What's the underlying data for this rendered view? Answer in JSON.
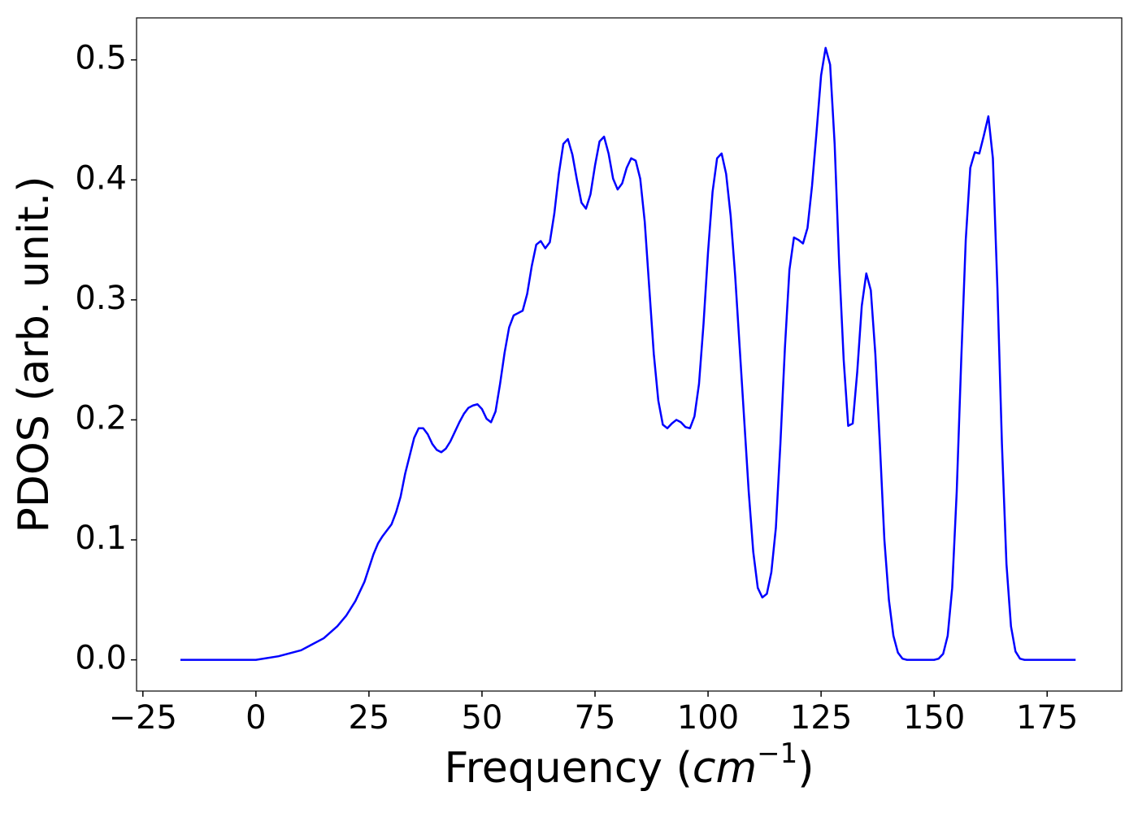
{
  "chart_data": {
    "type": "line",
    "y_label": "PDOS (arb. unit.)",
    "x_label": [
      "Frequency (",
      "cm",
      "−1",
      ")"
    ],
    "xlim": [
      -26.4,
      191.5
    ],
    "ylim": [
      -0.026,
      0.535
    ],
    "xticks": [
      {
        "value": -25,
        "label": "−25"
      },
      0,
      25,
      50,
      75,
      100,
      125,
      150,
      175
    ],
    "yticks": [
      {
        "value": 0,
        "label": "0.0"
      },
      0.1,
      0.2,
      0.3,
      0.4,
      0.5
    ],
    "x": [
      -16.7,
      -10,
      0,
      5,
      10,
      15,
      18,
      20,
      22,
      24,
      26,
      27,
      28,
      30,
      31,
      32,
      33,
      34,
      35,
      36,
      37,
      38,
      39,
      40,
      41,
      42,
      43,
      44,
      45,
      46,
      47,
      48,
      49,
      50,
      51,
      52,
      53,
      54,
      55,
      56,
      57,
      58,
      59,
      60,
      61,
      62,
      63,
      64,
      65,
      66,
      67,
      68,
      69,
      70,
      71,
      72,
      73,
      74,
      75,
      76,
      77,
      78,
      79,
      80,
      81,
      82,
      83,
      84,
      85,
      86,
      87,
      88,
      89,
      90,
      91,
      92,
      93,
      94,
      95,
      96,
      97,
      98,
      99,
      100,
      101,
      102,
      103,
      104,
      105,
      106,
      107,
      108,
      109,
      110,
      111,
      112,
      113,
      114,
      115,
      116,
      117,
      118,
      119,
      120,
      121,
      122,
      123,
      124,
      125,
      126,
      127,
      128,
      129,
      130,
      131,
      132,
      133,
      134,
      135,
      136,
      137,
      138,
      139,
      140,
      141,
      142,
      143,
      144,
      150,
      151,
      152,
      153,
      154,
      155,
      156,
      157,
      158,
      159,
      160,
      161,
      162,
      163,
      164,
      165,
      166,
      167,
      168,
      169,
      170,
      181.3
    ],
    "series": [
      {
        "name": "PDOS",
        "color": "#0000ff",
        "values": [
          0,
          0,
          0,
          0.003,
          0.008,
          0.018,
          0.028,
          0.037,
          0.049,
          0.065,
          0.088,
          0.097,
          0.103,
          0.113,
          0.123,
          0.136,
          0.155,
          0.17,
          0.185,
          0.193,
          0.193,
          0.188,
          0.18,
          0.175,
          0.173,
          0.176,
          0.182,
          0.19,
          0.198,
          0.205,
          0.21,
          0.212,
          0.213,
          0.209,
          0.201,
          0.198,
          0.207,
          0.23,
          0.256,
          0.277,
          0.287,
          0.289,
          0.291,
          0.305,
          0.328,
          0.346,
          0.349,
          0.343,
          0.348,
          0.372,
          0.405,
          0.43,
          0.434,
          0.421,
          0.4,
          0.381,
          0.376,
          0.388,
          0.412,
          0.432,
          0.436,
          0.422,
          0.401,
          0.392,
          0.397,
          0.41,
          0.418,
          0.416,
          0.401,
          0.365,
          0.31,
          0.255,
          0.216,
          0.196,
          0.193,
          0.197,
          0.2,
          0.198,
          0.194,
          0.193,
          0.203,
          0.23,
          0.28,
          0.34,
          0.39,
          0.418,
          0.422,
          0.405,
          0.37,
          0.32,
          0.26,
          0.2,
          0.14,
          0.09,
          0.06,
          0.052,
          0.055,
          0.073,
          0.11,
          0.18,
          0.26,
          0.325,
          0.352,
          0.35,
          0.347,
          0.36,
          0.395,
          0.44,
          0.487,
          0.51,
          0.496,
          0.43,
          0.33,
          0.25,
          0.195,
          0.197,
          0.24,
          0.295,
          0.322,
          0.308,
          0.255,
          0.18,
          0.1,
          0.05,
          0.02,
          0.006,
          0.001,
          0,
          0,
          0.001,
          0.005,
          0.02,
          0.06,
          0.14,
          0.25,
          0.35,
          0.41,
          0.423,
          0.422,
          0.437,
          0.453,
          0.418,
          0.31,
          0.18,
          0.08,
          0.028,
          0.007,
          0.001,
          0,
          0
        ]
      }
    ]
  }
}
